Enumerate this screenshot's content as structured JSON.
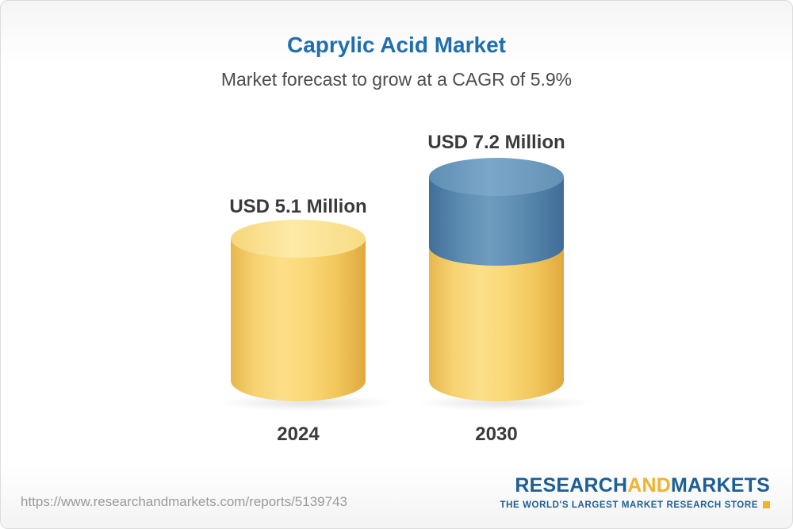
{
  "header": {
    "title": "Caprylic Acid Market",
    "subtitle": "Market forecast to grow at a CAGR of 5.9%"
  },
  "chart_data": {
    "type": "bar",
    "style": "3d-cylinder",
    "title": "Caprylic Acid Market",
    "subtitle": "Market forecast to grow at a CAGR of 5.9%",
    "categories": [
      "2024",
      "2030"
    ],
    "values": [
      5.1,
      7.2
    ],
    "value_labels": [
      "USD 5.1 Million",
      "USD 7.2 Million"
    ],
    "unit": "USD Million",
    "cagr_percent": 5.9,
    "legend_position": "none",
    "grid": false,
    "series": [
      {
        "name": "base-value-yellow",
        "values": [
          5.1,
          5.1
        ],
        "color": "#f6cd63"
      },
      {
        "name": "growth-over-base-blue",
        "values": [
          0,
          2.1
        ],
        "color": "#4d80a9"
      }
    ],
    "notes": "2030 cylinder is yellow up to the 2024 value with a blue segment on top representing growth"
  },
  "bars": [
    {
      "value_label": "USD 5.1 Million",
      "category": "2024"
    },
    {
      "value_label": "USD 7.2 Million",
      "category": "2030"
    }
  ],
  "footer": {
    "url": "https://www.researchandmarkets.com/reports/5139743",
    "logo": {
      "part1": "RESEARCH",
      "part2": "AND",
      "part3": "MARKETS",
      "tagline": "THE WORLD'S LARGEST MARKET RESEARCH STORE"
    }
  },
  "colors": {
    "title_blue": "#1f6fb0",
    "bar_yellow": "#f6cd63",
    "bar_blue": "#4d80a9",
    "logo_blue": "#1d5e94",
    "logo_yellow": "#f0b32c"
  }
}
